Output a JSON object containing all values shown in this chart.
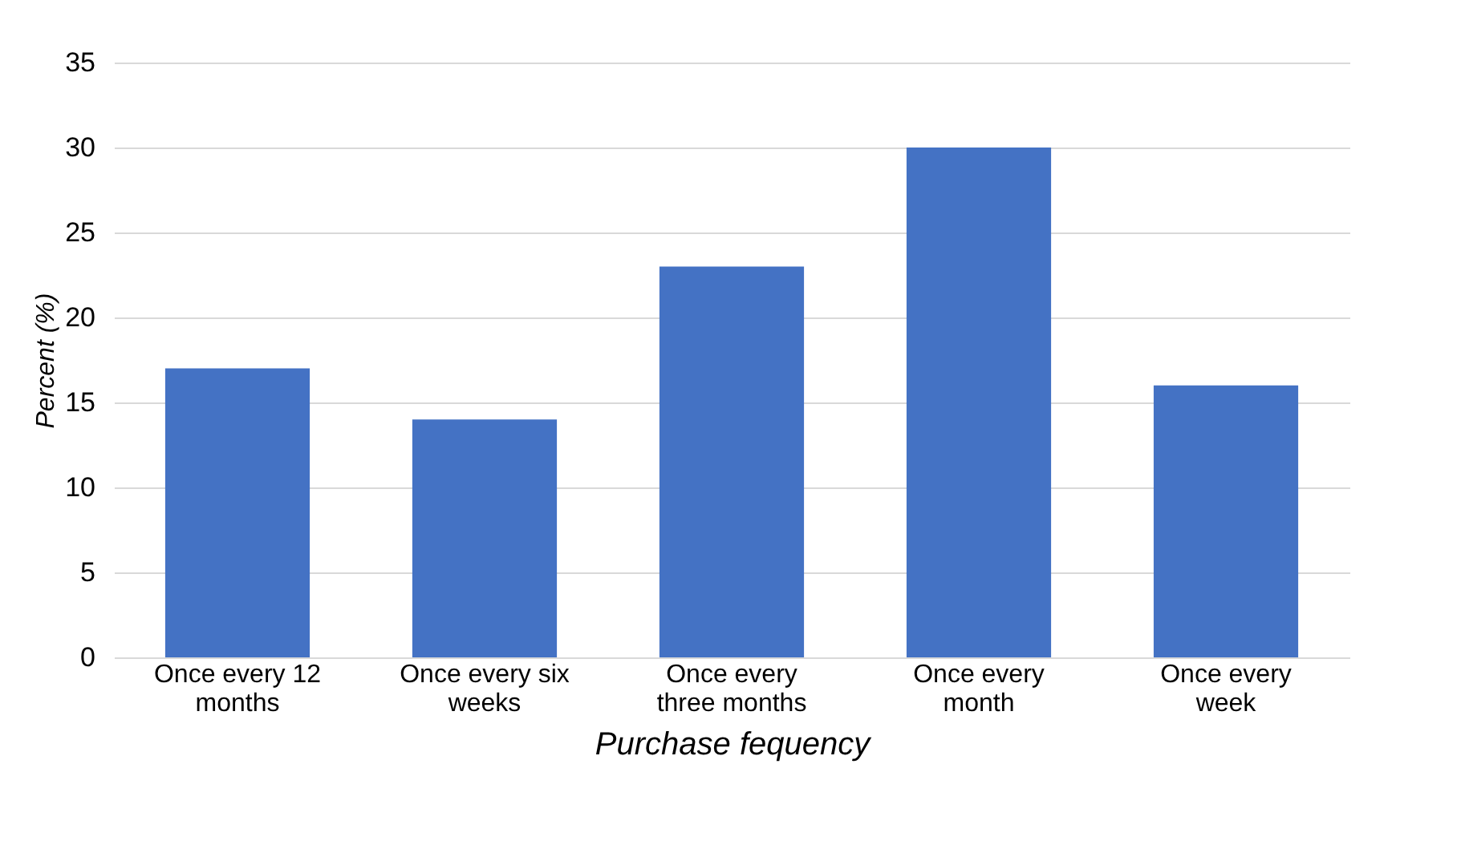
{
  "chart_data": {
    "type": "bar",
    "xlabel": "Purchase fequency",
    "ylabel": "Percent (%)",
    "categories": [
      "Once every 12 months",
      "Once every six weeks",
      "Once every three months",
      "Once every month",
      "Once every week"
    ],
    "values": [
      17,
      14,
      23,
      30,
      16
    ],
    "color": "#4472c4",
    "ylim": [
      0,
      35
    ],
    "yticks": [
      0,
      5,
      10,
      15,
      20,
      25,
      30,
      35
    ],
    "grid": "y"
  }
}
